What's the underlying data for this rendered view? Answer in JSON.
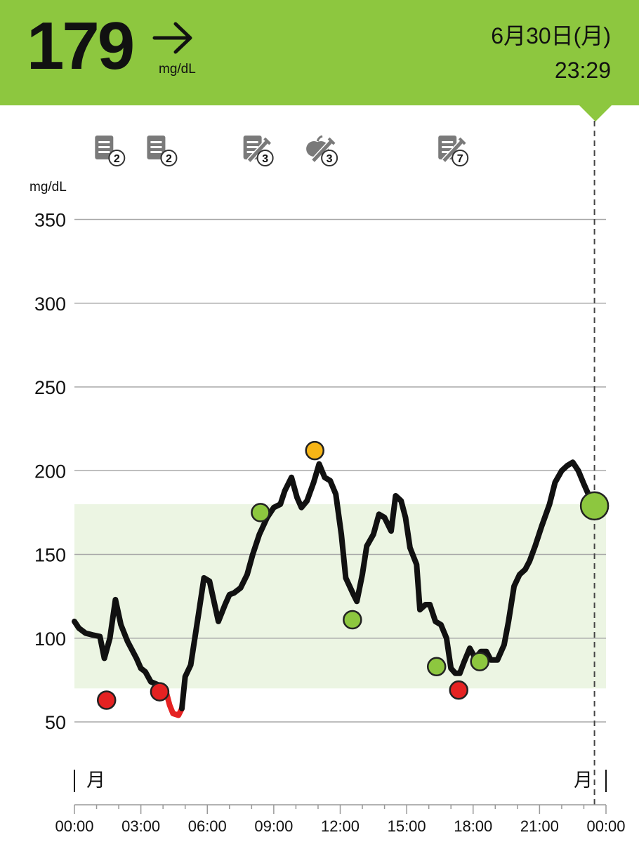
{
  "header": {
    "glucose_value": "179",
    "unit": "mg/dL",
    "trend": "right-arrow-icon",
    "date": "6月30日(月)",
    "time": "23:29",
    "bg_color": "#8dc73f"
  },
  "chart_data": {
    "type": "line",
    "ylabel": "mg/dL",
    "ylim": [
      20,
      380
    ],
    "yticks": [
      50,
      100,
      150,
      200,
      250,
      300,
      350
    ],
    "xticks": [
      "00:00",
      "03:00",
      "06:00",
      "09:00",
      "12:00",
      "15:00",
      "18:00",
      "21:00",
      "00:00"
    ],
    "xlim_hours": [
      0,
      24
    ],
    "day_markers": [
      "月",
      "月"
    ],
    "target_range": [
      70,
      180
    ],
    "current_time_hours": 23.48,
    "colors": {
      "line": "#111111",
      "low": "#e52222",
      "in_range": "#8dc73f",
      "high": "#f7b516",
      "target_band": "#ecf5e3"
    },
    "glucose_series": [
      [
        0,
        110
      ],
      [
        0.2,
        106
      ],
      [
        0.5,
        103
      ],
      [
        0.8,
        102
      ],
      [
        1.15,
        101
      ],
      [
        1.35,
        88
      ],
      [
        1.6,
        100
      ],
      [
        1.85,
        123
      ],
      [
        2.1,
        108
      ],
      [
        2.4,
        98
      ],
      [
        2.8,
        88
      ],
      [
        3.0,
        82
      ],
      [
        3.2,
        80
      ],
      [
        3.45,
        74
      ],
      [
        3.8,
        72
      ],
      [
        4.1,
        70
      ],
      [
        4.3,
        60
      ],
      [
        4.45,
        55
      ],
      [
        4.7,
        54
      ],
      [
        4.85,
        58
      ],
      [
        5.0,
        77
      ],
      [
        5.25,
        84
      ],
      [
        5.6,
        114
      ],
      [
        5.85,
        136
      ],
      [
        6.1,
        134
      ],
      [
        6.3,
        122
      ],
      [
        6.5,
        110
      ],
      [
        6.8,
        120
      ],
      [
        7.0,
        126
      ],
      [
        7.2,
        127
      ],
      [
        7.5,
        130
      ],
      [
        7.8,
        138
      ],
      [
        8.05,
        150
      ],
      [
        8.35,
        162
      ],
      [
        8.7,
        172
      ],
      [
        9.0,
        178
      ],
      [
        9.3,
        180
      ],
      [
        9.5,
        188
      ],
      [
        9.8,
        196
      ],
      [
        10.05,
        184
      ],
      [
        10.25,
        178
      ],
      [
        10.5,
        182
      ],
      [
        10.8,
        193
      ],
      [
        11.05,
        204
      ],
      [
        11.3,
        196
      ],
      [
        11.55,
        194
      ],
      [
        11.8,
        186
      ],
      [
        12.05,
        162
      ],
      [
        12.25,
        136
      ],
      [
        12.6,
        126
      ],
      [
        12.75,
        122
      ],
      [
        13.0,
        138
      ],
      [
        13.2,
        155
      ],
      [
        13.5,
        162
      ],
      [
        13.75,
        174
      ],
      [
        14.0,
        172
      ],
      [
        14.3,
        164
      ],
      [
        14.5,
        185
      ],
      [
        14.75,
        182
      ],
      [
        14.95,
        172
      ],
      [
        15.15,
        154
      ],
      [
        15.45,
        144
      ],
      [
        15.6,
        117
      ],
      [
        15.85,
        120
      ],
      [
        16.05,
        120
      ],
      [
        16.3,
        110
      ],
      [
        16.55,
        108
      ],
      [
        16.8,
        100
      ],
      [
        17.0,
        82
      ],
      [
        17.2,
        79
      ],
      [
        17.4,
        79
      ],
      [
        17.6,
        86
      ],
      [
        17.85,
        94
      ],
      [
        18.1,
        88
      ],
      [
        18.35,
        92
      ],
      [
        18.6,
        92
      ],
      [
        18.8,
        87
      ],
      [
        19.1,
        87
      ],
      [
        19.4,
        96
      ],
      [
        19.6,
        110
      ],
      [
        19.85,
        131
      ],
      [
        20.1,
        138
      ],
      [
        20.35,
        141
      ],
      [
        20.55,
        146
      ],
      [
        20.8,
        155
      ],
      [
        21.1,
        167
      ],
      [
        21.45,
        180
      ],
      [
        21.7,
        193
      ],
      [
        22.0,
        200
      ],
      [
        22.25,
        203
      ],
      [
        22.5,
        205
      ],
      [
        22.75,
        200
      ],
      [
        23.0,
        192
      ],
      [
        23.2,
        186
      ],
      [
        23.48,
        180
      ]
    ],
    "readings": [
      {
        "time": 1.45,
        "value": 63,
        "status": "low"
      },
      {
        "time": 3.85,
        "value": 68,
        "status": "low"
      },
      {
        "time": 8.4,
        "value": 175,
        "status": "in_range"
      },
      {
        "time": 10.85,
        "value": 212,
        "status": "high"
      },
      {
        "time": 12.55,
        "value": 111,
        "status": "in_range"
      },
      {
        "time": 16.35,
        "value": 83,
        "status": "in_range"
      },
      {
        "time": 17.35,
        "value": 69,
        "status": "low"
      },
      {
        "time": 18.3,
        "value": 86,
        "status": "in_range"
      },
      {
        "time": 23.48,
        "value": 179,
        "status": "in_range",
        "current": true
      }
    ],
    "notes": [
      {
        "time": 1.5,
        "icon": "note-icon",
        "count": "2"
      },
      {
        "time": 3.85,
        "icon": "note-icon",
        "count": "2"
      },
      {
        "time": 8.2,
        "icon": "note-insulin-icon",
        "count": "3"
      },
      {
        "time": 11.1,
        "icon": "food-insulin-icon",
        "count": "3"
      },
      {
        "time": 17.0,
        "icon": "note-insulin-icon",
        "count": "7"
      }
    ]
  }
}
